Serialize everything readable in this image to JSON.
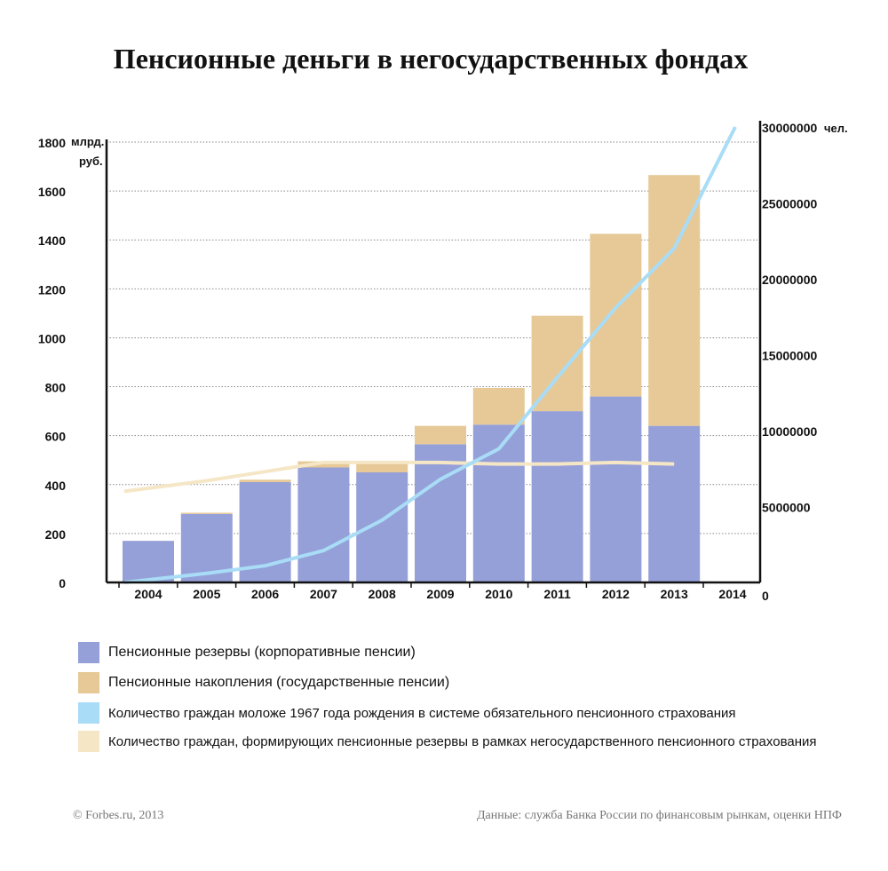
{
  "title": "Пенсионные деньги в негосударственных фондах",
  "footer": {
    "source_left": "© Forbes.ru, 2013",
    "source_right": "Данные: служба Банка России по финансовым рынкам, оценки НПФ"
  },
  "legend": [
    {
      "label": "Пенсионные резервы (корпоративные пенсии)",
      "color": "#95a0d8"
    },
    {
      "label": "Пенсионные накопления (государственные пенсии)",
      "color": "#e6c996"
    },
    {
      "label": "Количество граждан моложе 1967 года рождения  в системе обязательного пенсионного страхования",
      "color": "#a9dcf6"
    },
    {
      "label": "Количество граждан, формирующих пенсионные резервы в рамках негосударственного пенсионного страхования",
      "color": "#f5e6c6"
    }
  ],
  "chart_data": {
    "type": "bar",
    "stacked": true,
    "categories": [
      "2004",
      "2005",
      "2006",
      "2007",
      "2008",
      "2009",
      "2010",
      "2011",
      "2012",
      "2013",
      "2014"
    ],
    "left_axis": {
      "unit_line1": "млрд.",
      "unit_line2": "руб.",
      "ticks": [
        "0",
        "200",
        "400",
        "600",
        "800",
        "1000",
        "1200",
        "1400",
        "1600",
        "1800"
      ],
      "ylim": [
        0,
        1800
      ]
    },
    "right_axis": {
      "unit": "чел.",
      "ticks": [
        "0",
        "5000000",
        "10000000",
        "15000000",
        "20000000",
        "25000000",
        "30000000"
      ],
      "ylim": [
        0,
        30000000
      ]
    },
    "grid": true,
    "series": [
      {
        "name": "Пенсионные резервы (корпоративные пенсии)",
        "axis": "left",
        "kind": "bar",
        "color": "#95a0d8",
        "values": [
          170,
          280,
          410,
          470,
          450,
          565,
          645,
          700,
          760,
          640,
          null
        ]
      },
      {
        "name": "Пенсионные накопления (государственные пенсии)",
        "axis": "left",
        "kind": "bar",
        "color": "#e6c996",
        "values": [
          0,
          5,
          10,
          25,
          45,
          75,
          150,
          390,
          665,
          1025,
          null
        ]
      },
      {
        "name": "Количество граждан моложе 1967 года рождения  в системе обязательного пенсионного страхования",
        "axis": "right",
        "kind": "line",
        "color": "#a9dcf6",
        "values": [
          0,
          600000,
          1100000,
          2100000,
          4100000,
          6800000,
          8800000,
          13500000,
          18100000,
          22000000,
          30000000
        ]
      },
      {
        "name": "Количество граждан, формирующих пенсионные резервы в рамках негосударственного пенсионного страхования",
        "axis": "right",
        "kind": "line",
        "color": "#f5e6c6",
        "values": [
          6000000,
          6700000,
          7300000,
          7900000,
          7900000,
          7900000,
          7800000,
          7800000,
          7900000,
          7800000,
          null
        ]
      }
    ]
  }
}
